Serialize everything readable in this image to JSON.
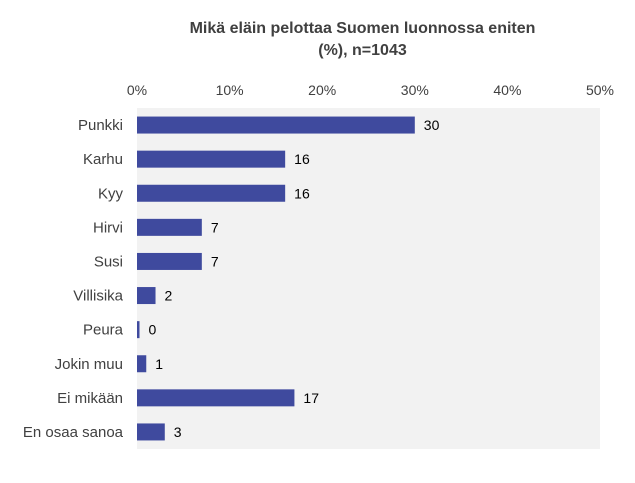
{
  "chart_data": {
    "type": "bar",
    "orientation": "horizontal",
    "title_line1": "Mikä eläin pelottaa Suomen luonnossa eniten",
    "title_line2": "(%),  n=1043",
    "categories": [
      "Punkki",
      "Karhu",
      "Kyy",
      "Hirvi",
      "Susi",
      "Villisika",
      "Peura",
      "Jokin muu",
      "Ei mikään",
      "En osaa sanoa"
    ],
    "values": [
      30,
      16,
      16,
      7,
      7,
      2,
      0,
      1,
      17,
      3
    ],
    "xlim": [
      0,
      50
    ],
    "xticks": [
      0,
      10,
      20,
      30,
      40,
      50
    ],
    "xtick_labels": [
      "0%",
      "10%",
      "20%",
      "30%",
      "40%",
      "50%"
    ],
    "axis_position": "top",
    "grid": false,
    "legend": "none",
    "colors": {
      "bar": "#3f4a9e",
      "plot_bg": "#f2f2f2",
      "text": "#404040"
    }
  }
}
